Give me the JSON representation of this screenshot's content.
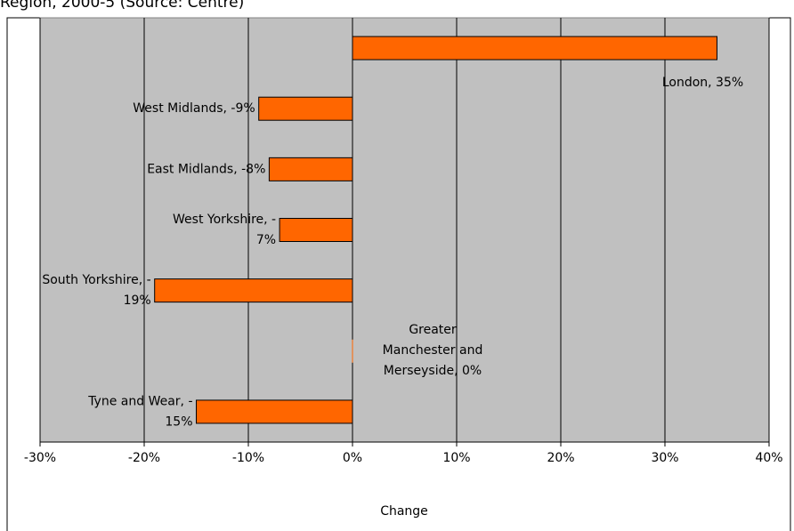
{
  "chart_data": {
    "type": "hbar",
    "title": "Region, 2000-5 (Source: Centre)",
    "x_label": "Change",
    "categories": [
      "London",
      "West Midlands",
      "East Midlands",
      "West Yorkshire",
      "South Yorkshire",
      "Greater Manchester and Merseyside",
      "Tyne and Wear"
    ],
    "values": [
      35,
      -9,
      -8,
      -7,
      -19,
      0,
      -15
    ],
    "value_labels": [
      "London, 35%",
      "West Midlands, -9%",
      "East Midlands, -8%",
      "West Yorkshire, -7%",
      "South Yorkshire, -19%",
      "Greater Manchester and Merseyside, 0%",
      "Tyne and Wear, -15%"
    ],
    "color": "#ff6600",
    "xlim": [
      -30,
      40
    ],
    "xticks": [
      {
        "value": -30,
        "label": "-30%"
      },
      {
        "value": -20,
        "label": "-20%"
      },
      {
        "value": -10,
        "label": "-10%"
      },
      {
        "value": 0,
        "label": "0%"
      },
      {
        "value": 10,
        "label": "10%"
      },
      {
        "value": 20,
        "label": "20%"
      },
      {
        "value": 30,
        "label": "30%"
      },
      {
        "value": 40,
        "label": "40%"
      }
    ],
    "grid": true
  }
}
